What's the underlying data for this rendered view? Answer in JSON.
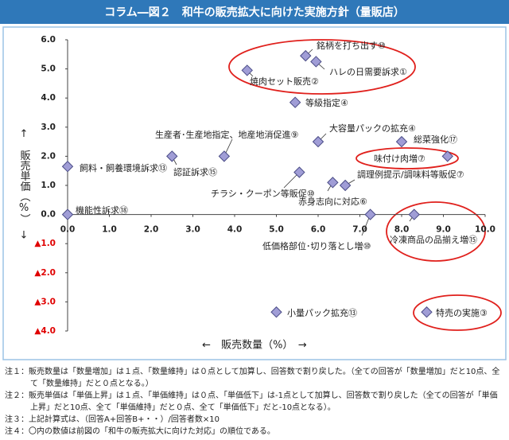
{
  "chart_data": {
    "type": "scatter",
    "title": "コラム―図２　和牛の販売拡大に向けた実施方針（量販店）",
    "xlabel": "←　販売数量（%）　→",
    "ylabel": "↑　販売単価（%）　↓",
    "x": [
      5.7,
      5.95,
      4.3,
      5.45,
      3.75,
      6.0,
      8.0,
      9.1,
      0.0,
      2.5,
      5.55,
      6.65,
      6.35,
      0.0,
      7.25,
      8.3,
      5.0,
      8.6
    ],
    "values": [
      5.45,
      5.25,
      4.95,
      3.85,
      2.0,
      2.5,
      2.5,
      2.0,
      1.65,
      2.0,
      1.45,
      1.0,
      1.1,
      0.0,
      0.0,
      0.0,
      -3.35,
      -3.35
    ],
    "labels": [
      "銘柄を打ち出す⑩",
      "ハレの日需要訴求①",
      "焼肉セット販売②",
      "等級指定④",
      "生産者･生産地指定、地産地消促進⑨",
      "大容量パックの拡充④",
      "総菜強化⑰",
      "味付け肉増⑦",
      "飼料・飼養環境訴求⑬",
      "認証訴求⑮",
      "チラシ・クーポン等販促⑩",
      "調理例提示/調味料等販促⑦",
      "赤身志向に対応⑥",
      "機能性訴求⑱",
      "低価格部位･切り落とし増⑩",
      "冷凍商品の品揃え増⑮",
      "小量パック拡充⑬",
      "特売の実施③"
    ],
    "color": "#a09dd6",
    "edge_color": "#4a4c86",
    "xlim": [
      0,
      10
    ],
    "ylim": [
      -4,
      6
    ],
    "xticks": [
      {
        "value": 0,
        "label": "0.0"
      },
      {
        "value": 1,
        "label": "1.0"
      },
      {
        "value": 2,
        "label": "2.0"
      },
      {
        "value": 3,
        "label": "3.0"
      },
      {
        "value": 4,
        "label": "4.0"
      },
      {
        "value": 5,
        "label": "5.0"
      },
      {
        "value": 6,
        "label": "6.0"
      },
      {
        "value": 7,
        "label": "7.0"
      },
      {
        "value": 8,
        "label": "8.0"
      },
      {
        "value": 9,
        "label": "9.0"
      },
      {
        "value": 10,
        "label": "10.0"
      }
    ],
    "yticks": [
      {
        "value": 6,
        "label": "6.0"
      },
      {
        "value": 5,
        "label": "5.0"
      },
      {
        "value": 4,
        "label": "4.0"
      },
      {
        "value": 3,
        "label": "3.0"
      },
      {
        "value": 2,
        "label": "2.0"
      },
      {
        "value": 1,
        "label": "1.0"
      },
      {
        "value": 0,
        "label": "0.0"
      },
      {
        "value": -1,
        "label": "▲1.0"
      },
      {
        "value": -2,
        "label": "▲2.0"
      },
      {
        "value": -3,
        "label": "▲3.0"
      },
      {
        "value": -4,
        "label": "▲4.0"
      }
    ]
  },
  "notes": [
    "注１：販売数量は「数量増加」は１点、「数量維持」は０点として加算し、回答数で割り戻した。（全ての回答が「数量増加」だと10点、全て「数量維持」だと０点となる。）",
    "注２：販売単価は「単価上昇」は１点、「単価維持」は０点、「単価低下」は-1点として加算し、回答数で割り戻した（全ての回答が「単価上昇」だと10点、全て「単価維持」だと０点、全て「単価低下」だと-10点となる）。",
    "注３：上記計算式は、（回答A+回答B+・・）/回答者数×10",
    "注４：〇内の数値は前図の「和牛の販売拡大に向けた対応」の順位である。"
  ]
}
